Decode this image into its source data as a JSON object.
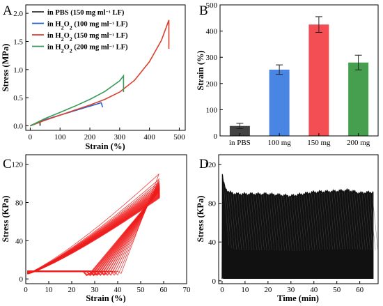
{
  "chart_data": [
    {
      "panel_label": "A",
      "type": "line",
      "xlabel": "Strain (%)",
      "ylabel": "Stress (MPa)",
      "xlim": [
        -15,
        520
      ],
      "ylim": [
        -0.08,
        2.15
      ],
      "xticks": [
        "0",
        "100",
        "200",
        "300",
        "400",
        "500"
      ],
      "yticks": [
        "0.0",
        "0.5",
        "1.0",
        "1.5",
        "2.0"
      ],
      "legend": {
        "placement": "top-left"
      },
      "series": [
        {
          "name_parts": [
            "in PBS (150 mg ml",
            "⁻¹",
            " LF)"
          ],
          "color": "#333333",
          "x": [
            0,
            10,
            20,
            30,
            33,
            33
          ],
          "y": [
            0,
            0.02,
            0.04,
            0.06,
            0.07,
            0.0
          ]
        },
        {
          "name_parts": [
            "in H",
            "2",
            "O",
            "2",
            " (100 mg ml",
            "⁻¹",
            " LF)"
          ],
          "color": "#2b62c8",
          "x": [
            0,
            25,
            50,
            75,
            100,
            125,
            150,
            175,
            200,
            225,
            238,
            243
          ],
          "y": [
            0,
            0.06,
            0.11,
            0.15,
            0.19,
            0.23,
            0.27,
            0.31,
            0.35,
            0.39,
            0.41,
            0.33
          ]
        },
        {
          "name_parts": [
            "in H",
            "2",
            "O",
            "2",
            " (150 mg ml",
            "⁻¹",
            " LF)"
          ],
          "color": "#d9412e",
          "x": [
            0,
            50,
            100,
            150,
            200,
            250,
            300,
            350,
            400,
            440,
            465,
            465
          ],
          "y": [
            0,
            0.1,
            0.19,
            0.28,
            0.37,
            0.47,
            0.6,
            0.81,
            1.14,
            1.52,
            1.88,
            1.37
          ]
        },
        {
          "name_parts": [
            "in H",
            "2",
            "O",
            "2",
            " (200 mg ml",
            "⁻¹",
            " LF)"
          ],
          "color": "#3a9a5a",
          "x": [
            0,
            50,
            100,
            150,
            200,
            250,
            300,
            313,
            313
          ],
          "y": [
            0,
            0.13,
            0.24,
            0.35,
            0.47,
            0.61,
            0.8,
            0.89,
            0.6
          ]
        }
      ]
    },
    {
      "panel_label": "B",
      "type": "bar",
      "ylabel": "Strain (%)",
      "categories": [
        "in PBS",
        "100 mg",
        "150 mg",
        "200 mg"
      ],
      "values": [
        38,
        253,
        425,
        280
      ],
      "errors": [
        10,
        18,
        30,
        28
      ],
      "colors": [
        "#333333",
        "#3a7be0",
        "#f23f45",
        "#35973f"
      ],
      "ylim": [
        0,
        500
      ],
      "yticks": [
        "0",
        "100",
        "200",
        "300",
        "400",
        "500"
      ]
    },
    {
      "panel_label": "C",
      "type": "line",
      "xlabel": "Strain (%)",
      "ylabel": "Stress (KPa)",
      "xlim": [
        0,
        70
      ],
      "ylim": [
        -5,
        130
      ],
      "xticks": [
        "0",
        "10",
        "20",
        "30",
        "40",
        "50",
        "60",
        "70"
      ],
      "yticks": [
        "0",
        "40",
        "80",
        "120"
      ],
      "color": "#ef1c1c",
      "loop": {
        "max_strain": 58,
        "peak_stress_first_cycle": 110,
        "peak_stress_last_cycle": 92,
        "cycle_count_drawn": 14
      }
    },
    {
      "panel_label": "D",
      "type": "line",
      "xlabel": "Time (min)",
      "ylabel": "Stress (KPa)",
      "xlim": [
        -1.5,
        68
      ],
      "ylim": [
        -3,
        130
      ],
      "xticks": [
        "0",
        "10",
        "20",
        "30",
        "40",
        "50",
        "60"
      ],
      "yticks": [
        "0",
        "40",
        "80",
        "120"
      ],
      "color": "#111111",
      "envelope": {
        "t": [
          0,
          0.5,
          1.5,
          3,
          6,
          10,
          20,
          30,
          40,
          50,
          55,
          60,
          66
        ],
        "max": [
          110,
          104,
          96,
          92,
          90,
          90,
          90,
          88,
          92,
          93,
          94,
          91,
          92
        ],
        "min": [
          3,
          2,
          2,
          2,
          2,
          2,
          2,
          2,
          2,
          2,
          2,
          2,
          2
        ]
      }
    }
  ]
}
